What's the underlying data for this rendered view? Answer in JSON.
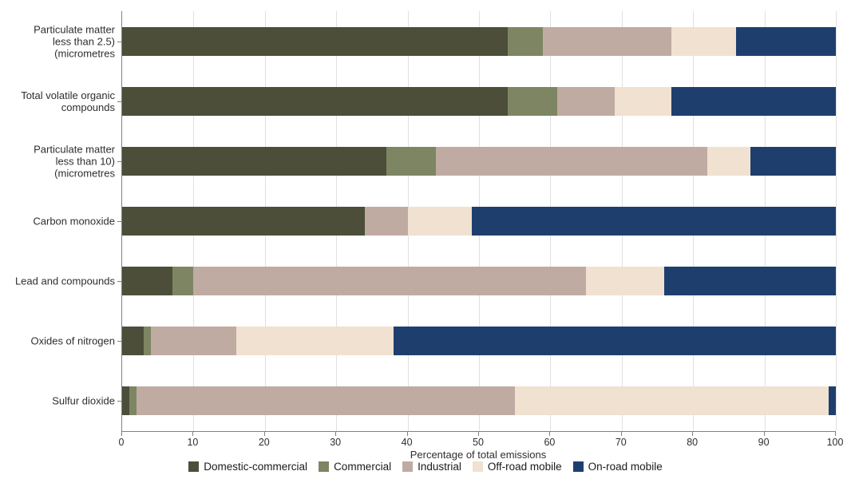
{
  "chart_data": {
    "type": "bar",
    "orientation": "horizontal",
    "stacked": true,
    "title": "",
    "xlabel": "Percentage of total emissions",
    "ylabel": "",
    "xlim": [
      0,
      100
    ],
    "xticks": [
      0,
      10,
      20,
      30,
      40,
      50,
      60,
      70,
      80,
      90,
      100
    ],
    "grid": "vertical-only",
    "legend_position": "bottom",
    "categories": [
      {
        "label": "Particulate matter less than 2.5 (micrometres)",
        "lines": [
          "Particulate matter",
          "less than 2.5)",
          "(micrometres"
        ]
      },
      {
        "label": "Total volatile organic compounds",
        "lines": [
          "Total volatile organic",
          "compounds"
        ]
      },
      {
        "label": "Particulate matter less than 10 (micrometres)",
        "lines": [
          "Particulate matter",
          "less than 10)",
          "(micrometres"
        ]
      },
      {
        "label": "Carbon monoxide",
        "lines": [
          "Carbon monoxide"
        ]
      },
      {
        "label": "Lead and compounds",
        "lines": [
          "Lead and compounds"
        ]
      },
      {
        "label": "Oxides of nitrogen",
        "lines": [
          "Oxides of nitrogen"
        ]
      },
      {
        "label": "Sulfur dioxide",
        "lines": [
          "Sulfur dioxide"
        ]
      }
    ],
    "series": [
      {
        "name": "Domestic-commercial",
        "color": "#4C4E3A",
        "values": [
          54,
          54,
          37,
          34,
          7,
          3,
          1
        ]
      },
      {
        "name": "Commercial",
        "color": "#7E8563",
        "values": [
          5,
          7,
          7,
          0,
          3,
          1,
          1
        ]
      },
      {
        "name": "Industrial",
        "color": "#C0ABA2",
        "values": [
          18,
          8,
          38,
          6,
          55,
          12,
          53
        ]
      },
      {
        "name": "Off-road mobile",
        "color": "#F0E1D1",
        "values": [
          9,
          8,
          6,
          9,
          11,
          22,
          44
        ]
      },
      {
        "name": "On-road mobile",
        "color": "#1E3F6E",
        "values": [
          14,
          23,
          12,
          51,
          24,
          62,
          1
        ]
      }
    ]
  },
  "styles": {
    "background": "#FFFFFF",
    "grid_color": "#E0E0E0",
    "axis_color": "#808080",
    "text_color": "#2E2E2E"
  }
}
